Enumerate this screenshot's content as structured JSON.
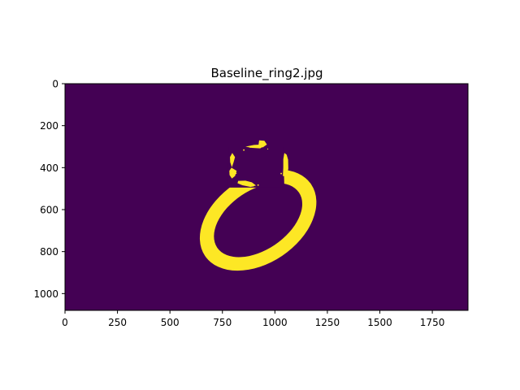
{
  "chart_data": {
    "type": "heatmap",
    "title": "Baseline_ring2.jpg",
    "xlabel": "",
    "ylabel": "",
    "image_width": 1920,
    "image_height": 1080,
    "xlim": [
      0,
      1920
    ],
    "ylim": [
      1080,
      0
    ],
    "x_ticks": [
      0,
      250,
      500,
      750,
      1000,
      1250,
      1500,
      1750
    ],
    "y_ticks": [
      0,
      200,
      400,
      600,
      800,
      1000
    ],
    "colormap": "viridis",
    "colors": {
      "background": "#440154",
      "mask": "#fde725"
    },
    "mask_shapes": {
      "ring": {
        "cx": 920,
        "cy": 650,
        "rx_outer": 305,
        "ry_outer": 205,
        "rx_inner": 235,
        "ry_inner": 142,
        "rotation_deg": -34
      },
      "gap": [
        [
          780,
          300
        ],
        [
          1040,
          300
        ],
        [
          1045,
          495
        ],
        [
          775,
          495
        ]
      ],
      "prongs": [
        {
          "points": [
            [
              797,
              330
            ],
            [
              810,
              350
            ],
            [
              803,
              375
            ],
            [
              795,
              398
            ],
            [
              787,
              374
            ],
            [
              786,
              350
            ]
          ]
        },
        {
          "points": [
            [
              793,
              400
            ],
            [
              818,
              415
            ],
            [
              810,
              440
            ],
            [
              795,
              452
            ],
            [
              784,
              435
            ],
            [
              783,
              415
            ]
          ]
        },
        {
          "points": [
            [
              1045,
              330
            ],
            [
              1040,
              360
            ],
            [
              1040,
              400
            ],
            [
              1038,
              440
            ],
            [
              1056,
              442
            ],
            [
              1064,
              405
            ],
            [
              1063,
              362
            ],
            [
              1056,
              338
            ]
          ]
        },
        {
          "points": [
            [
              860,
              300
            ],
            [
              900,
              292
            ],
            [
              935,
              290
            ],
            [
              950,
              296
            ],
            [
              930,
              308
            ],
            [
              890,
              306
            ]
          ]
        },
        {
          "points": [
            [
              925,
              270
            ],
            [
              950,
              272
            ],
            [
              962,
              290
            ],
            [
              942,
              304
            ],
            [
              922,
              292
            ]
          ]
        },
        {
          "points": [
            [
              825,
              463
            ],
            [
              860,
              462
            ],
            [
              890,
              470
            ],
            [
              910,
              485
            ],
            [
              885,
              492
            ],
            [
              845,
              484
            ],
            [
              822,
              474
            ]
          ]
        }
      ],
      "specks": [
        {
          "x": 852,
          "y": 316,
          "r": 3
        },
        {
          "x": 883,
          "y": 302,
          "r": 3
        },
        {
          "x": 814,
          "y": 427,
          "r": 3
        },
        {
          "x": 895,
          "y": 486,
          "r": 4
        },
        {
          "x": 920,
          "y": 483,
          "r": 3
        },
        {
          "x": 1030,
          "y": 428,
          "r": 3
        },
        {
          "x": 966,
          "y": 311,
          "r": 2
        }
      ]
    }
  }
}
